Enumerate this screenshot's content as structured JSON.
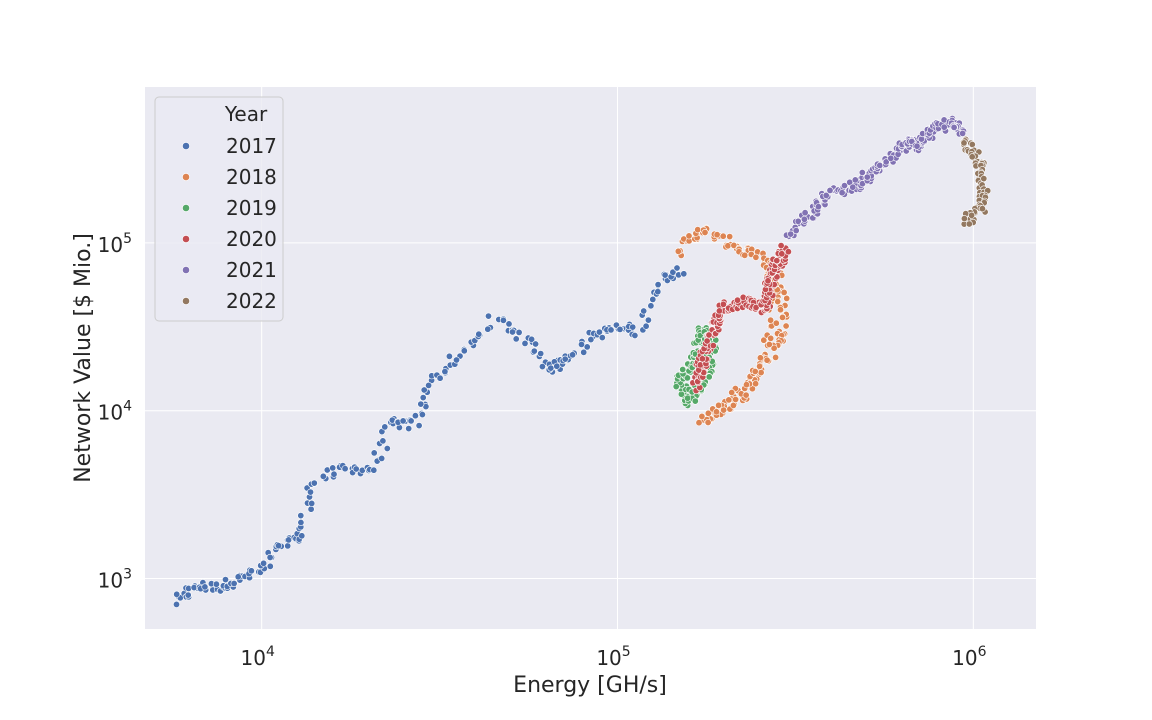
{
  "chart_data": {
    "type": "scatter",
    "title": "",
    "xlabel": "Energy [GH/s]",
    "ylabel": "Network Value [$ Mio.]",
    "xscale": "log",
    "yscale": "log",
    "xlim": [
      4700,
      1500000
    ],
    "ylim": [
      500,
      850000
    ],
    "grid": true,
    "background_color": "#eaeaf2",
    "x_ticks": [
      {
        "base": "10",
        "exp": "4",
        "value": 10000
      },
      {
        "base": "10",
        "exp": "5",
        "value": 100000
      },
      {
        "base": "10",
        "exp": "6",
        "value": 1000000
      }
    ],
    "y_ticks": [
      {
        "base": "10",
        "exp": "3",
        "value": 1000
      },
      {
        "base": "10",
        "exp": "4",
        "value": 10000
      },
      {
        "base": "10",
        "exp": "5",
        "value": 100000
      }
    ],
    "legend": {
      "title": "Year",
      "placement": "top-left"
    },
    "series": [
      {
        "name": "2017",
        "color": "#4c72b0",
        "anchors": [
          [
            5700,
            720
          ],
          [
            6500,
            900
          ],
          [
            7500,
            880
          ],
          [
            8500,
            980
          ],
          [
            10000,
            1120
          ],
          [
            11500,
            1600
          ],
          [
            12800,
            1800
          ],
          [
            14000,
            3800
          ],
          [
            17000,
            4500
          ],
          [
            20500,
            4500
          ],
          [
            23000,
            8500
          ],
          [
            27000,
            8200
          ],
          [
            30000,
            15000
          ],
          [
            36000,
            21000
          ],
          [
            45000,
            35000
          ],
          [
            55000,
            27000
          ],
          [
            65000,
            18000
          ],
          [
            72000,
            20000
          ],
          [
            85000,
            28000
          ],
          [
            100000,
            31000
          ],
          [
            115000,
            30000
          ],
          [
            130000,
            60000
          ],
          [
            150000,
            70000
          ]
        ],
        "count": 250
      },
      {
        "name": "2018",
        "color": "#dd8452",
        "anchors": [
          [
            150000,
            90000
          ],
          [
            170000,
            120000
          ],
          [
            205000,
            100000
          ],
          [
            240000,
            85000
          ],
          [
            275000,
            70000
          ],
          [
            290000,
            50000
          ],
          [
            290000,
            30000
          ],
          [
            270000,
            22000
          ],
          [
            240000,
            15000
          ],
          [
            200000,
            10500
          ],
          [
            175000,
            9000
          ],
          [
            225000,
            12000
          ],
          [
            255000,
            20000
          ],
          [
            280000,
            45000
          ],
          [
            270000,
            75000
          ]
        ],
        "count": 200
      },
      {
        "name": "2019",
        "color": "#55a868",
        "anchors": [
          [
            155000,
            11000
          ],
          [
            150000,
            15000
          ],
          [
            165000,
            20000
          ],
          [
            175000,
            30000
          ],
          [
            185000,
            25000
          ],
          [
            175000,
            15000
          ],
          [
            160000,
            12000
          ]
        ],
        "count": 150
      },
      {
        "name": "2020",
        "color": "#c44e52",
        "anchors": [
          [
            165000,
            14000
          ],
          [
            175000,
            20000
          ],
          [
            185000,
            30000
          ],
          [
            200000,
            42000
          ],
          [
            230000,
            45000
          ],
          [
            260000,
            40000
          ],
          [
            265000,
            55000
          ],
          [
            280000,
            75000
          ],
          [
            295000,
            90000
          ]
        ],
        "count": 200
      },
      {
        "name": "2021",
        "color": "#8172b3",
        "anchors": [
          [
            300000,
            110000
          ],
          [
            350000,
            150000
          ],
          [
            400000,
            200000
          ],
          [
            470000,
            220000
          ],
          [
            520000,
            260000
          ],
          [
            600000,
            330000
          ],
          [
            650000,
            400000
          ],
          [
            700000,
            380000
          ],
          [
            760000,
            460000
          ],
          [
            850000,
            520000
          ],
          [
            930000,
            470000
          ]
        ],
        "count": 200
      },
      {
        "name": "2022",
        "color": "#937860",
        "anchors": [
          [
            950000,
            430000
          ],
          [
            990000,
            350000
          ],
          [
            1030000,
            300000
          ],
          [
            1060000,
            250000
          ],
          [
            1080000,
            200000
          ],
          [
            1050000,
            160000
          ],
          [
            990000,
            145000
          ],
          [
            970000,
            135000
          ]
        ],
        "count": 80
      }
    ]
  }
}
